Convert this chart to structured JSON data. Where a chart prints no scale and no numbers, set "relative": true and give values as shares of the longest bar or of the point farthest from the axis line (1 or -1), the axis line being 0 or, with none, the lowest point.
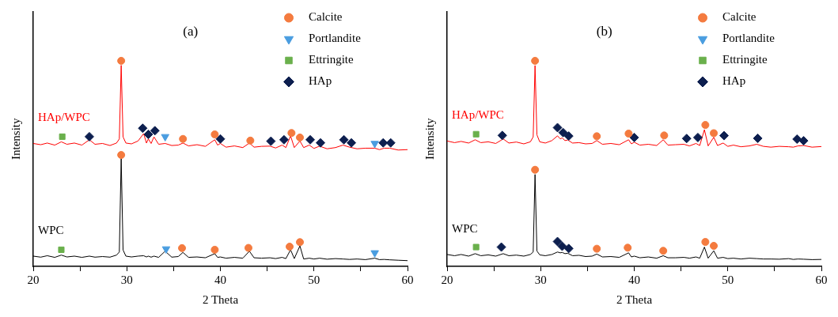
{
  "chart_data": [
    {
      "type": "line",
      "title": "(a)",
      "xlabel": "2 Theta",
      "ylabel": "Intensity",
      "relative": true,
      "legend": "top right",
      "xlim": [
        20,
        60
      ],
      "xticks": [
        20,
        {
          "value": 25,
          "label": null
        },
        30,
        {
          "value": 35,
          "label": null
        },
        40,
        {
          "value": 45,
          "label": null
        },
        50,
        {
          "value": 55,
          "label": null
        },
        60
      ],
      "series": [
        {
          "name": "HAp/WPC",
          "type": "line",
          "color": "#ff0000",
          "x": [
            20,
            20.8,
            21.5,
            22.3,
            23.0,
            23.6,
            24.4,
            25.2,
            26.0,
            26.6,
            27.4,
            28.2,
            28.9,
            29.2,
            29.4,
            29.6,
            29.9,
            30.5,
            31.2,
            31.8,
            32.1,
            32.3,
            32.6,
            32.9,
            33.4,
            34.1,
            34.8,
            35.5,
            36.0,
            36.6,
            37.5,
            38.4,
            39.4,
            39.7,
            40.0,
            40.6,
            41.5,
            42.4,
            43.1,
            43.6,
            44.4,
            45.3,
            45.9,
            46.6,
            47.0,
            47.5,
            47.9,
            48.5,
            48.9,
            49.5,
            50.0,
            50.6,
            51.4,
            52.3,
            53.1,
            53.8,
            54.6,
            55.5,
            56.5,
            57.0,
            57.5,
            58.1,
            59.0,
            60
          ],
          "values": [
            0.598,
            0.592,
            0.6,
            0.59,
            0.606,
            0.594,
            0.6,
            0.59,
            0.616,
            0.594,
            0.598,
            0.588,
            0.6,
            0.62,
            0.978,
            0.63,
            0.6,
            0.596,
            0.61,
            0.646,
            0.6,
            0.62,
            0.598,
            0.63,
            0.594,
            0.598,
            0.588,
            0.59,
            0.6,
            0.586,
            0.592,
            0.584,
            0.616,
            0.59,
            0.598,
            0.58,
            0.586,
            0.578,
            0.6,
            0.58,
            0.584,
            0.585,
            0.576,
            0.59,
            0.578,
            0.635,
            0.578,
            0.61,
            0.578,
            0.59,
            0.574,
            0.585,
            0.572,
            0.578,
            0.59,
            0.58,
            0.572,
            0.575,
            0.575,
            0.568,
            0.575,
            0.575,
            0.566,
            0.568
          ]
        },
        {
          "name": "WPC",
          "type": "line",
          "color": "#000000",
          "x": [
            20,
            20.8,
            21.5,
            22.3,
            23.0,
            23.6,
            24.4,
            25.2,
            26.0,
            26.6,
            27.4,
            28.2,
            28.9,
            29.2,
            29.4,
            29.6,
            29.9,
            30.5,
            31.2,
            31.8,
            32.1,
            32.3,
            32.6,
            32.9,
            33.4,
            34.1,
            34.8,
            35.5,
            36.0,
            36.6,
            37.5,
            38.4,
            39.4,
            39.7,
            40.0,
            40.6,
            41.5,
            42.4,
            43.1,
            43.6,
            44.4,
            45.3,
            45.9,
            46.6,
            47.0,
            47.5,
            47.9,
            48.5,
            48.9,
            49.5,
            50.0,
            50.6,
            51.4,
            52.3,
            53.1,
            53.8,
            54.6,
            55.5,
            56.5,
            57.0,
            57.5,
            58.1,
            59.0,
            60
          ],
          "values": [
            0.05,
            0.045,
            0.052,
            0.044,
            0.055,
            0.046,
            0.05,
            0.044,
            0.05,
            0.045,
            0.048,
            0.045,
            0.055,
            0.07,
            0.524,
            0.08,
            0.05,
            0.046,
            0.05,
            0.052,
            0.046,
            0.05,
            0.045,
            0.05,
            0.044,
            0.074,
            0.045,
            0.048,
            0.068,
            0.044,
            0.046,
            0.042,
            0.062,
            0.044,
            0.046,
            0.04,
            0.044,
            0.04,
            0.074,
            0.042,
            0.04,
            0.042,
            0.038,
            0.044,
            0.038,
            0.081,
            0.038,
            0.1,
            0.036,
            0.04,
            0.036,
            0.04,
            0.035,
            0.038,
            0.036,
            0.034,
            0.036,
            0.033,
            0.04,
            0.033,
            0.034,
            0.032,
            0.03,
            0.028
          ]
        },
        {
          "name": "Calcite",
          "type": "scatter",
          "marker": "circle",
          "color": "#f47b3f",
          "x": [
            29.4,
            36.0,
            39.4,
            43.2,
            47.6,
            48.5,
            29.4,
            35.9,
            39.4,
            43.0,
            47.4,
            48.5
          ],
          "values": [
            1.0,
            0.62,
            0.642,
            0.612,
            0.649,
            0.627,
            0.542,
            0.089,
            0.081,
            0.09,
            0.096,
            0.118
          ]
        },
        {
          "name": "Portlandite",
          "type": "scatter",
          "marker": "triangle",
          "color": "#4a9de0",
          "x": [
            34.1,
            56.5,
            34.2,
            56.5
          ],
          "values": [
            0.631,
            0.598,
            0.085,
            0.066
          ]
        },
        {
          "name": "Ettringite",
          "type": "scatter",
          "marker": "square",
          "color": "#6ab04c",
          "x": [
            23.1,
            23.0
          ],
          "values": [
            0.631,
            0.081
          ]
        },
        {
          "name": "HAp",
          "type": "scatter",
          "marker": "diamond",
          "color": "#0d1f4f",
          "x": [
            26.0,
            31.7,
            32.3,
            33.0,
            40.0,
            45.4,
            46.8,
            49.6,
            50.7,
            53.2,
            54.0,
            57.4,
            58.2
          ],
          "values": [
            0.631,
            0.672,
            0.642,
            0.66,
            0.62,
            0.609,
            0.616,
            0.616,
            0.601,
            0.616,
            0.601,
            0.601,
            0.601
          ]
        }
      ]
    },
    {
      "type": "line",
      "title": "(b)",
      "xlabel": "2 Theta",
      "ylabel": "Intensity",
      "relative": true,
      "legend": "top right",
      "xlim": [
        20,
        60
      ],
      "xticks": [
        20,
        {
          "value": 25,
          "label": null
        },
        30,
        {
          "value": 35,
          "label": null
        },
        40,
        {
          "value": 45,
          "label": null
        },
        50,
        {
          "value": 55,
          "label": null
        },
        60
      ],
      "series": [
        {
          "name": "HAp/WPC",
          "type": "line",
          "color": "#ff0000",
          "x": [
            20,
            20.8,
            21.5,
            22.3,
            23.0,
            23.6,
            24.4,
            25.2,
            26.0,
            26.6,
            27.4,
            28.2,
            28.9,
            29.2,
            29.4,
            29.6,
            29.9,
            30.5,
            31.2,
            31.8,
            32.1,
            32.3,
            32.6,
            32.9,
            33.4,
            34.1,
            34.8,
            35.5,
            36.0,
            36.6,
            37.5,
            38.4,
            39.4,
            39.7,
            40.0,
            40.6,
            41.5,
            42.4,
            43.1,
            43.6,
            44.4,
            45.3,
            45.9,
            46.6,
            47.0,
            47.5,
            47.9,
            48.5,
            48.9,
            49.5,
            50.0,
            50.6,
            51.4,
            52.3,
            53.1,
            53.8,
            54.6,
            55.5,
            56.5,
            57.0,
            57.5,
            58.1,
            59.0,
            60
          ],
          "values": [
            0.61,
            0.602,
            0.608,
            0.6,
            0.616,
            0.602,
            0.606,
            0.598,
            0.62,
            0.6,
            0.605,
            0.596,
            0.606,
            0.63,
            0.977,
            0.64,
            0.606,
            0.6,
            0.612,
            0.635,
            0.62,
            0.625,
            0.612,
            0.615,
            0.6,
            0.602,
            0.596,
            0.598,
            0.612,
            0.594,
            0.598,
            0.592,
            0.616,
            0.596,
            0.604,
            0.59,
            0.594,
            0.588,
            0.616,
            0.59,
            0.592,
            0.594,
            0.586,
            0.598,
            0.588,
            0.665,
            0.586,
            0.628,
            0.588,
            0.6,
            0.584,
            0.59,
            0.582,
            0.586,
            0.594,
            0.584,
            0.58,
            0.584,
            0.582,
            0.58,
            0.586,
            0.588,
            0.58,
            0.583
          ]
        },
        {
          "name": "WPC",
          "type": "line",
          "color": "#000000",
          "x": [
            20,
            20.8,
            21.5,
            22.3,
            23.0,
            23.6,
            24.4,
            25.2,
            26.0,
            26.6,
            27.4,
            28.2,
            28.9,
            29.2,
            29.4,
            29.6,
            29.9,
            30.5,
            31.2,
            31.8,
            32.1,
            32.3,
            32.6,
            32.9,
            33.4,
            34.1,
            34.8,
            35.5,
            36.0,
            36.6,
            37.5,
            38.4,
            39.4,
            39.7,
            40.0,
            40.6,
            41.5,
            42.4,
            43.1,
            43.6,
            44.4,
            45.3,
            45.9,
            46.6,
            47.0,
            47.5,
            47.9,
            48.5,
            48.9,
            49.5,
            50.0,
            50.6,
            51.4,
            52.3,
            53.1,
            53.8,
            54.6,
            55.5,
            56.5,
            57.0,
            57.5,
            58.1,
            59.0,
            60
          ],
          "values": [
            0.058,
            0.052,
            0.058,
            0.05,
            0.062,
            0.052,
            0.056,
            0.05,
            0.062,
            0.052,
            0.055,
            0.05,
            0.058,
            0.07,
            0.447,
            0.075,
            0.056,
            0.052,
            0.058,
            0.07,
            0.066,
            0.068,
            0.062,
            0.064,
            0.052,
            0.054,
            0.048,
            0.05,
            0.06,
            0.046,
            0.048,
            0.044,
            0.066,
            0.046,
            0.05,
            0.042,
            0.046,
            0.04,
            0.052,
            0.042,
            0.042,
            0.044,
            0.04,
            0.046,
            0.04,
            0.094,
            0.04,
            0.076,
            0.04,
            0.044,
            0.038,
            0.04,
            0.036,
            0.04,
            0.038,
            0.036,
            0.036,
            0.035,
            0.038,
            0.034,
            0.036,
            0.035,
            0.033,
            0.034
          ]
        },
        {
          "name": "Calcite",
          "type": "scatter",
          "marker": "circle",
          "color": "#f47b3f",
          "x": [
            29.4,
            36.0,
            39.4,
            43.2,
            47.6,
            48.5,
            29.4,
            36.0,
            39.3,
            43.1,
            47.6,
            48.5
          ],
          "values": [
            1.0,
            0.633,
            0.646,
            0.637,
            0.688,
            0.648,
            0.47,
            0.086,
            0.091,
            0.076,
            0.119,
            0.1
          ]
        },
        {
          "name": "Portlandite",
          "type": "scatter",
          "marker": "triangle",
          "color": "#4a9de0"
        },
        {
          "name": "Ettringite",
          "type": "scatter",
          "marker": "square",
          "color": "#6ab04c",
          "x": [
            23.1,
            23.1
          ],
          "values": [
            0.643,
            0.094
          ]
        },
        {
          "name": "HAp",
          "type": "scatter",
          "marker": "diamond",
          "color": "#0d1f4f",
          "x": [
            25.9,
            31.8,
            32.4,
            33.0,
            40.0,
            45.6,
            46.8,
            49.6,
            53.2,
            57.4,
            58.1,
            25.8,
            31.8,
            32.3,
            33.0
          ],
          "values": [
            0.637,
            0.675,
            0.651,
            0.634,
            0.627,
            0.622,
            0.627,
            0.636,
            0.623,
            0.619,
            0.611,
            0.094,
            0.121,
            0.098,
            0.087
          ]
        }
      ]
    }
  ]
}
